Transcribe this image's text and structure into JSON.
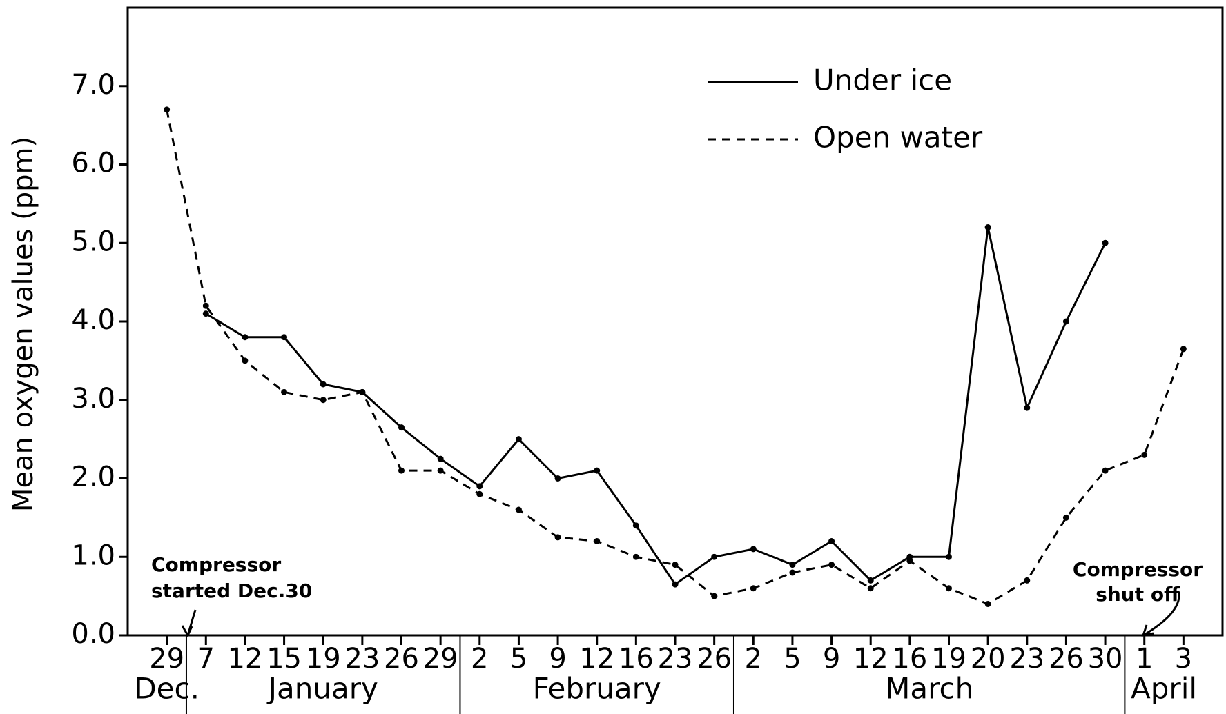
{
  "chart_data": {
    "type": "line",
    "y_label": "Mean oxygen values (ppm)",
    "categories": [
      "29",
      "7",
      "12",
      "15",
      "19",
      "23",
      "26",
      "29",
      "2",
      "5",
      "9",
      "12",
      "16",
      "23",
      "26",
      "2",
      "5",
      "9",
      "12",
      "16",
      "19",
      "20",
      "23",
      "26",
      "30",
      "1",
      "3"
    ],
    "months": [
      "Dec.",
      "January",
      "January",
      "January",
      "January",
      "January",
      "January",
      "January",
      "February",
      "February",
      "February",
      "February",
      "February",
      "February",
      "February",
      "March",
      "March",
      "March",
      "March",
      "March",
      "March",
      "March",
      "March",
      "March",
      "March",
      "April",
      "April"
    ],
    "series": [
      {
        "name": "Under ice",
        "color": "#000000",
        "style": "solid",
        "values": [
          null,
          4.1,
          3.8,
          3.8,
          3.2,
          3.1,
          2.65,
          2.25,
          1.9,
          2.5,
          2.0,
          2.1,
          1.4,
          0.65,
          1.0,
          1.1,
          0.9,
          1.2,
          0.7,
          1.0,
          1.0,
          5.2,
          2.9,
          4.0,
          5.0,
          null,
          null
        ]
      },
      {
        "name": "Open water",
        "color": "#000000",
        "style": "dashed",
        "values": [
          6.7,
          4.2,
          3.5,
          3.1,
          3.0,
          3.1,
          2.1,
          2.1,
          1.8,
          1.6,
          1.25,
          1.2,
          1.0,
          0.9,
          0.5,
          0.6,
          0.8,
          0.9,
          0.6,
          0.95,
          0.6,
          0.4,
          0.7,
          1.5,
          2.1,
          2.3,
          3.65
        ]
      }
    ],
    "ylim": [
      0,
      8
    ],
    "yticks": [
      {
        "value": 0,
        "label": "0.0"
      },
      {
        "value": 1,
        "label": "1.0"
      },
      {
        "value": 2,
        "label": "2.0"
      },
      {
        "value": 3,
        "label": "3.0"
      },
      {
        "value": 4,
        "label": "4.0"
      },
      {
        "value": 5,
        "label": "5.0"
      },
      {
        "value": 6,
        "label": "6.0"
      },
      {
        "value": 7,
        "label": "7.0"
      }
    ],
    "grid": false,
    "legend": "upper right",
    "annotations": [
      {
        "lines": [
          "Compressor",
          "started Dec.30"
        ]
      },
      {
        "lines": [
          "Compressor",
          "shut off"
        ]
      }
    ]
  }
}
